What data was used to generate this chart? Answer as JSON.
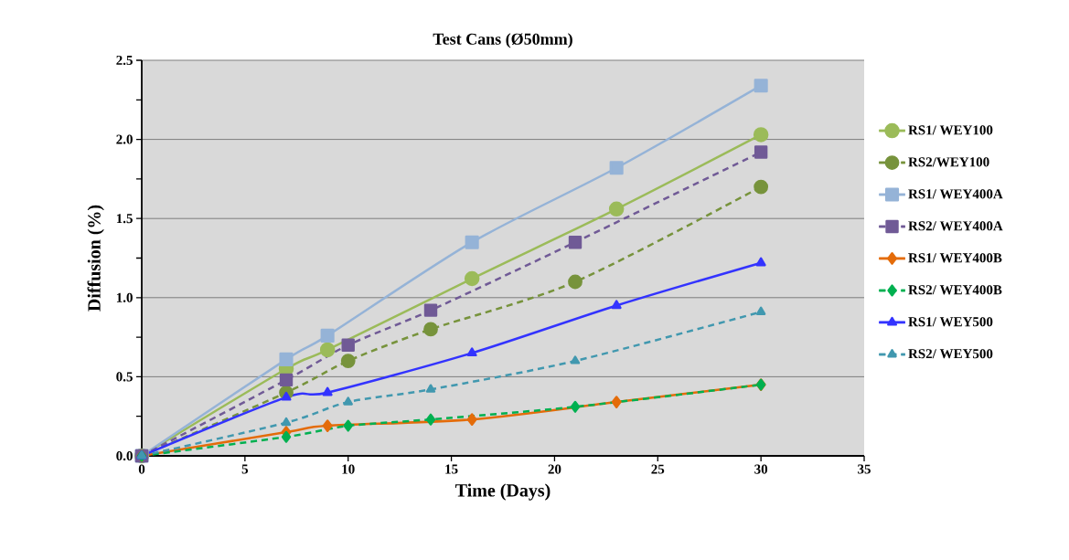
{
  "chart_data": {
    "type": "line",
    "title": "Test Cans (Ø50mm)",
    "xlabel": "Time (Days)",
    "ylabel": "Diffusion (%)",
    "xlim": [
      0,
      35
    ],
    "xticks": [
      0,
      5,
      10,
      15,
      20,
      25,
      30,
      35
    ],
    "ylim": [
      0,
      2.5
    ],
    "yticks": [
      {
        "value": 0,
        "label": "0.0"
      },
      {
        "value": 0.5,
        "label": "0.5"
      },
      {
        "value": 1,
        "label": "1.0"
      },
      {
        "value": 1.5,
        "label": "1.5"
      },
      {
        "value": 2,
        "label": "2.0"
      },
      {
        "value": 2.5,
        "label": "2.5"
      }
    ],
    "grid": "y",
    "legend": "right",
    "series": [
      {
        "name": "RS1/ WEY100",
        "color": "#9bbb59",
        "marker": "circle",
        "line_style": "solid",
        "x": [
          0,
          7,
          9,
          16,
          23,
          30
        ],
        "values": [
          0,
          0.55,
          0.67,
          1.12,
          1.56,
          2.03
        ]
      },
      {
        "name": "RS2/WEY100",
        "color": "#77933c",
        "marker": "circle",
        "line_style": "dashed",
        "x": [
          0,
          7,
          10,
          14,
          21,
          30
        ],
        "values": [
          0,
          0.4,
          0.6,
          0.8,
          1.1,
          1.7
        ]
      },
      {
        "name": "RS1/ WEY400A",
        "color": "#95b3d7",
        "marker": "square",
        "line_style": "solid",
        "x": [
          0,
          7,
          9,
          16,
          23,
          30
        ],
        "values": [
          0,
          0.61,
          0.76,
          1.35,
          1.82,
          2.34
        ]
      },
      {
        "name": "RS2/ WEY400A",
        "color": "#705a96",
        "marker": "square",
        "line_style": "dashed",
        "x": [
          0,
          7,
          10,
          14,
          21,
          30
        ],
        "values": [
          0,
          0.48,
          0.7,
          0.92,
          1.35,
          1.92
        ]
      },
      {
        "name": "RS1/ WEY400B",
        "color": "#e46c0a",
        "marker": "diamond",
        "line_style": "solid",
        "x": [
          0,
          7,
          9,
          16,
          23,
          30
        ],
        "values": [
          0,
          0.15,
          0.19,
          0.23,
          0.34,
          0.45
        ]
      },
      {
        "name": "RS2/ WEY400B",
        "color": "#00b050",
        "marker": "diamond",
        "line_style": "dashed",
        "x": [
          0,
          7,
          10,
          14,
          21,
          30
        ],
        "values": [
          0,
          0.12,
          0.19,
          0.23,
          0.31,
          0.45
        ]
      },
      {
        "name": "RS1/ WEY500",
        "color": "#3333ff",
        "marker": "triangle",
        "line_style": "solid",
        "x": [
          0,
          7,
          9,
          16,
          23,
          30
        ],
        "values": [
          0,
          0.37,
          0.4,
          0.65,
          0.95,
          1.22
        ]
      },
      {
        "name": "RS2/ WEY500",
        "color": "#4198af",
        "marker": "triangle",
        "line_style": "dashed",
        "x": [
          0,
          7,
          10,
          14,
          21,
          30
        ],
        "values": [
          0,
          0.21,
          0.34,
          0.42,
          0.6,
          0.91
        ]
      }
    ]
  }
}
